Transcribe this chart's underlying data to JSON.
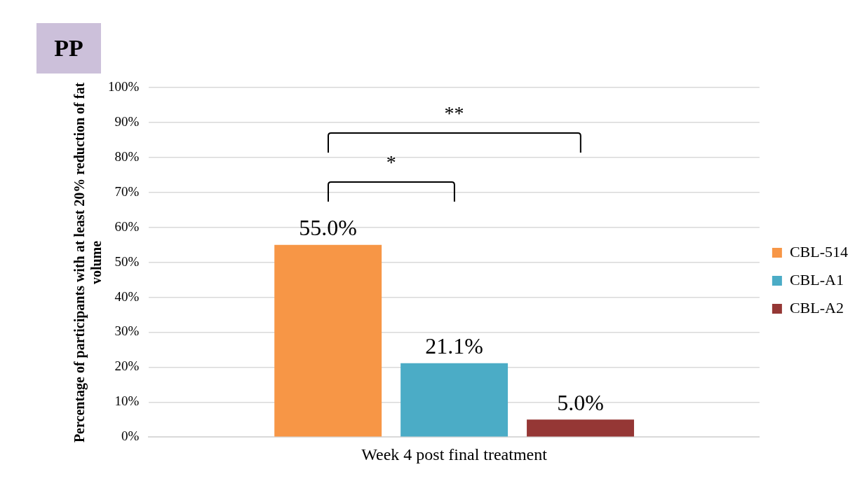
{
  "chart_data": {
    "type": "bar",
    "title": "PP",
    "ylabel": "Percentage of participants with at least 20% reduction of fat volume",
    "categories": [
      "Week 4 post final treatment"
    ],
    "series": [
      {
        "name": "CBL-514",
        "color": "#f79646",
        "values": [
          55.0
        ],
        "value_labels": [
          "55.0%"
        ]
      },
      {
        "name": "CBL-A1",
        "color": "#4bacc6",
        "values": [
          21.1
        ],
        "value_labels": [
          "21.1%"
        ]
      },
      {
        "name": "CBL-A2",
        "color": "#953735",
        "values": [
          5.0
        ],
        "value_labels": [
          "5.0%"
        ]
      }
    ],
    "ylim": [
      0,
      100
    ],
    "yticks": [
      {
        "value": 0,
        "label": "0%"
      },
      {
        "value": 10,
        "label": "10%"
      },
      {
        "value": 20,
        "label": "20%"
      },
      {
        "value": 30,
        "label": "30%"
      },
      {
        "value": 40,
        "label": "40%"
      },
      {
        "value": 50,
        "label": "50%"
      },
      {
        "value": 60,
        "label": "60%"
      },
      {
        "value": 70,
        "label": "70%"
      },
      {
        "value": 80,
        "label": "80%"
      },
      {
        "value": 90,
        "label": "90%"
      },
      {
        "value": 100,
        "label": "100%"
      }
    ],
    "annotations": [
      "*",
      "**"
    ],
    "grid": "y",
    "legend": "right"
  }
}
